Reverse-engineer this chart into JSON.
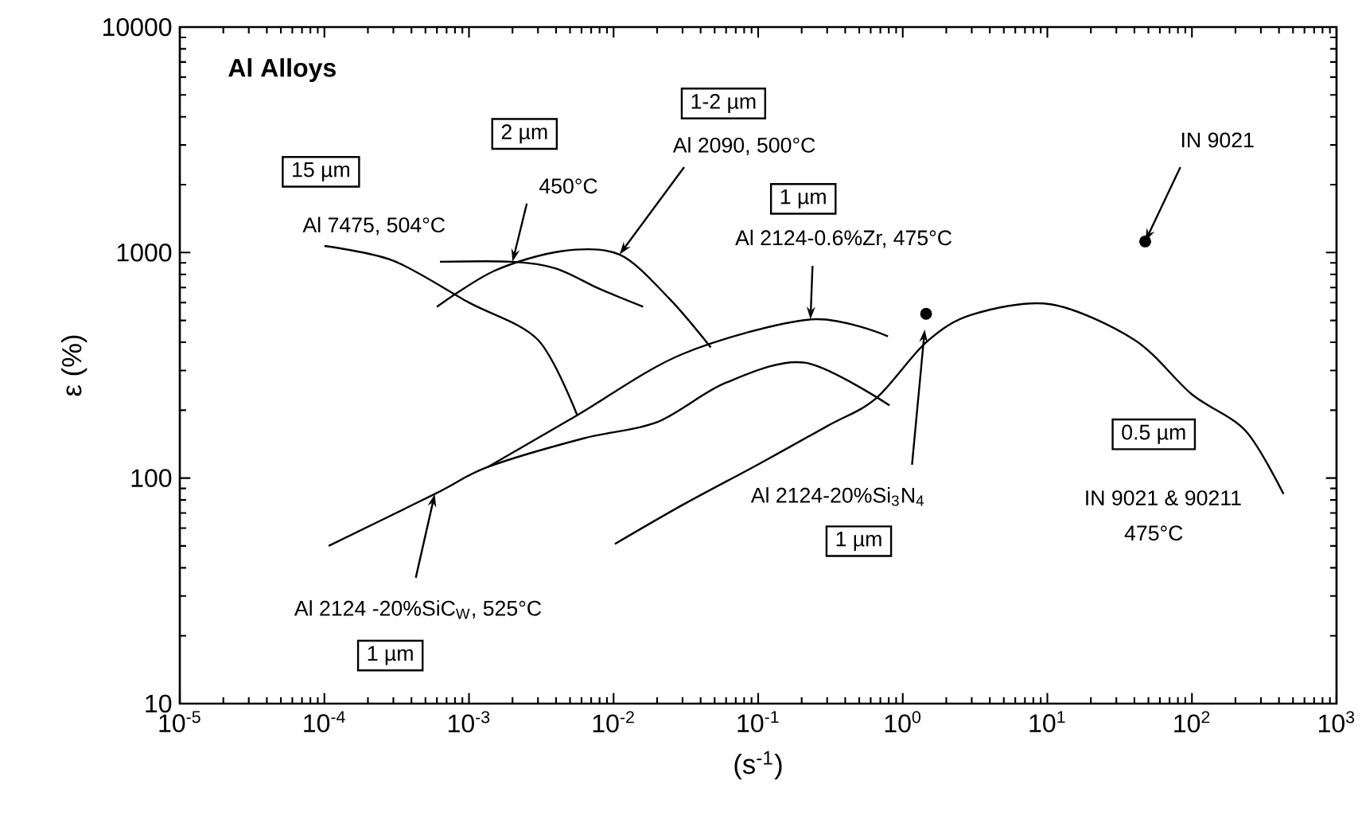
{
  "chart_data": {
    "type": "line",
    "title": "Al Alloys",
    "xlabel": "(s$^{-1}$)",
    "ylabel": "ε (%)",
    "log": "xy",
    "grid": false,
    "xlim": [
      1e-05,
      1000
    ],
    "ylim": [
      10,
      10000
    ],
    "xticks": [
      {
        "value": 1e-05,
        "label": "10$^{-5}$"
      },
      {
        "value": 0.0001,
        "label": "10$^{-4}$"
      },
      {
        "value": 0.001,
        "label": "10$^{-3}$"
      },
      {
        "value": 0.01,
        "label": "10$^{-2}$"
      },
      {
        "value": 0.1,
        "label": "10$^{-1}$"
      },
      {
        "value": 1,
        "label": "10$^{0}$"
      },
      {
        "value": 10,
        "label": "10$^{1}$"
      },
      {
        "value": 100,
        "label": "10$^{2}$"
      },
      {
        "value": 1000,
        "label": "10$^{3}$"
      }
    ],
    "yticks": [
      10,
      100,
      1000,
      10000
    ],
    "series": [
      {
        "type": "line",
        "color": "#000000",
        "x": [
          0.0001,
          0.0003,
          0.001,
          0.003,
          0.0056
        ],
        "values": [
          1070,
          920,
          600,
          410,
          190
        ]
      },
      {
        "type": "line",
        "color": "#000000",
        "x": [
          0.00063,
          0.002,
          0.004,
          0.008,
          0.016
        ],
        "values": [
          910,
          910,
          850,
          690,
          575
        ]
      },
      {
        "type": "line",
        "color": "#000000",
        "x": [
          0.0006,
          0.0015,
          0.0044,
          0.011,
          0.024,
          0.047
        ],
        "values": [
          575,
          830,
          1015,
          980,
          630,
          380
        ]
      },
      {
        "type": "line",
        "color": "#000000",
        "x": [
          0.000107,
          0.00058,
          0.00135,
          0.0062,
          0.02,
          0.06,
          0.21,
          0.81
        ],
        "values": [
          50,
          85,
          112,
          150,
          177,
          265,
          325,
          210
        ]
      },
      {
        "type": "line",
        "color": "#000000",
        "x": [
          0.00135,
          0.0056,
          0.03,
          0.23,
          0.79
        ],
        "values": [
          112,
          190,
          355,
          505,
          425
        ]
      },
      {
        "type": "line",
        "color": "#000000",
        "x": [
          0.0102,
          0.03,
          0.1,
          0.3,
          0.65,
          1.45,
          3,
          10.5,
          40,
          100,
          235,
          430
        ],
        "values": [
          51,
          76,
          115,
          170,
          225,
          400,
          530,
          590,
          410,
          235,
          162,
          85
        ]
      },
      {
        "type": "scatter",
        "color": "#000000",
        "x": [
          1.45,
          47.5
        ],
        "values": [
          535,
          1120
        ]
      }
    ],
    "annotations": [
      "Al 7475, 504°C",
      "15 µm",
      {
        "text": "450°C",
        "x": 0.002,
        "y": 910
      },
      "2 µm",
      {
        "text": "Al 2090, 500°C",
        "x": 0.011,
        "y": 980
      },
      "1-2 µm",
      {
        "text": "Al 2124-0.6%Zr, 475°C",
        "x": 0.23,
        "y": 505
      },
      "1 µm",
      {
        "text": "IN 9021",
        "x": 47.5,
        "y": 1120
      },
      "Al 2124-20%Si$_{3}$N$_{4}$",
      "1 µm",
      "IN 9021 & 90211",
      "475°C",
      "0.5 µm",
      {
        "text": "Al 2124 -20%SiC$_{W}$, 525°C",
        "x": 0.00058,
        "y": 85
      },
      "1 µm"
    ]
  }
}
